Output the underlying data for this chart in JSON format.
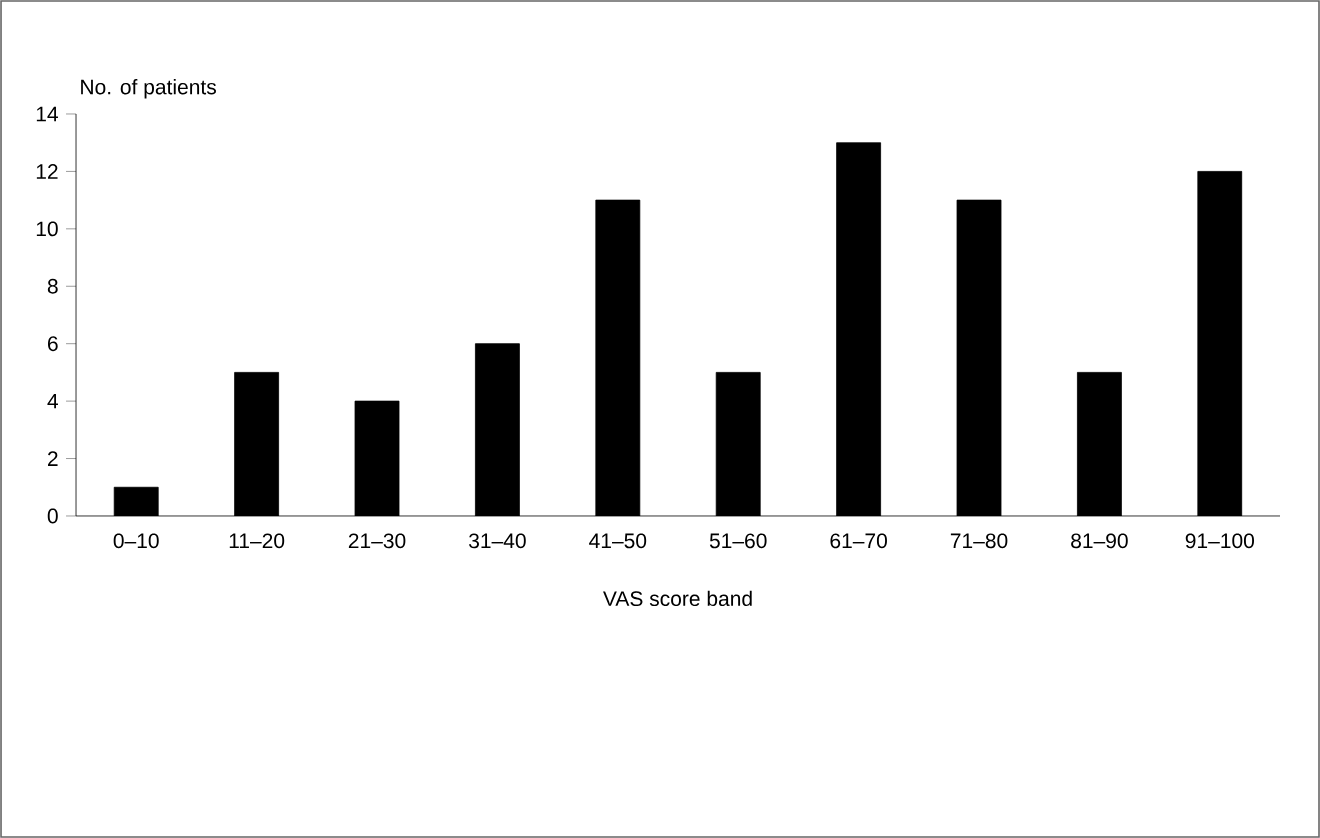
{
  "chart_data": {
    "type": "bar",
    "xlabel": "VAS score band",
    "ylabel": "No. of patients",
    "categories": [
      "0–10",
      "11–20",
      "21–30",
      "31–40",
      "41–50",
      "51–60",
      "61–70",
      "71–80",
      "81–90",
      "91–100"
    ],
    "values": [
      1,
      5,
      4,
      6,
      11,
      5,
      13,
      11,
      5,
      12
    ],
    "color": "#000000",
    "ylim": [
      0,
      14
    ],
    "yticks": [
      0,
      2,
      4,
      6,
      8,
      10,
      12,
      14
    ],
    "grid": false
  }
}
